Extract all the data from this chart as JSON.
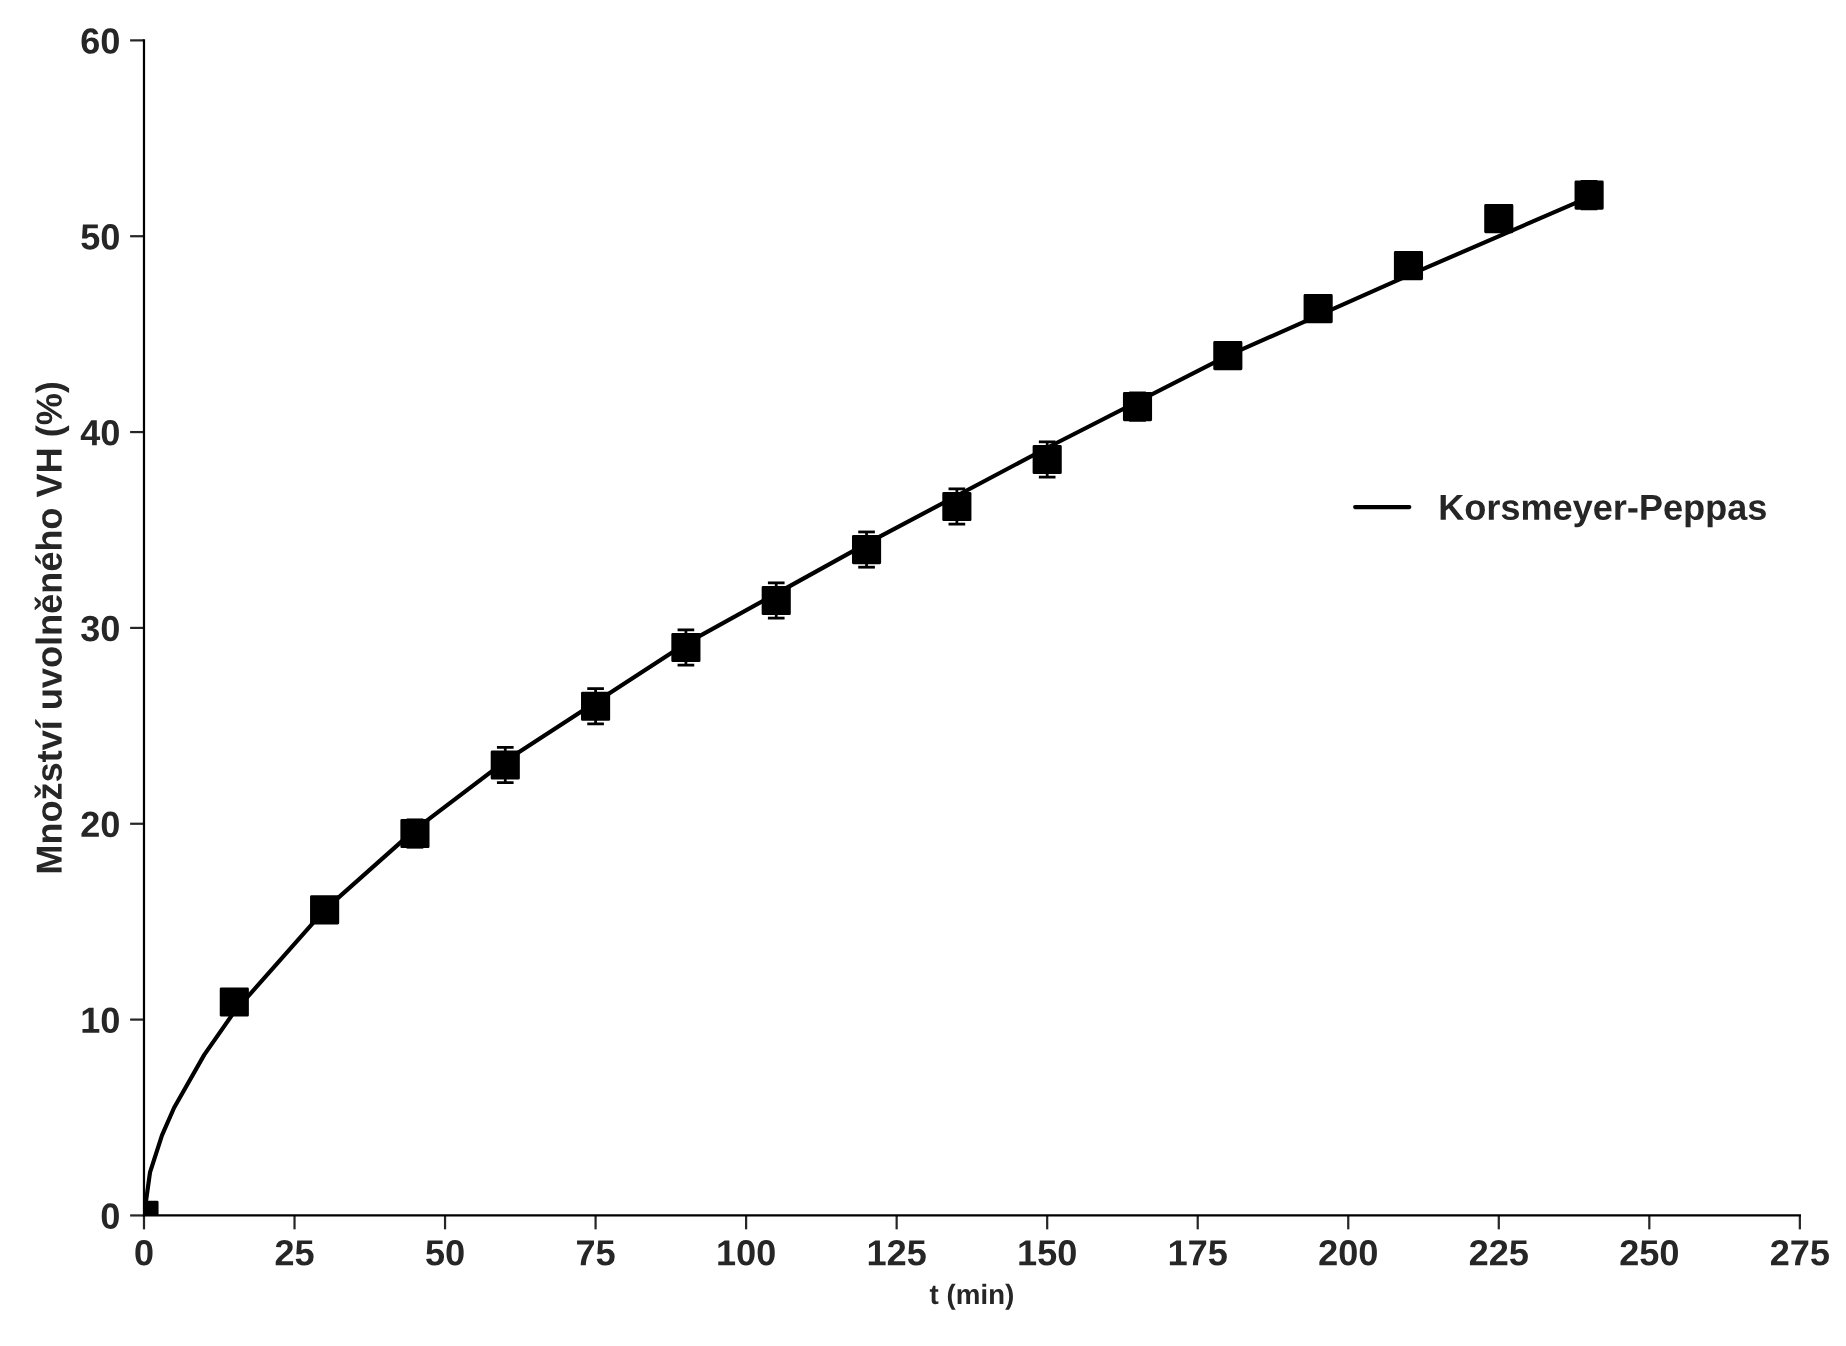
{
  "chart_data": {
    "type": "scatter",
    "xlabel": "t (min)",
    "ylabel": "Množství uvolněného VH (%)",
    "xlim": [
      0,
      275
    ],
    "xticks": [
      0,
      25,
      50,
      75,
      100,
      125,
      150,
      175,
      200,
      225,
      250,
      275
    ],
    "ylim": [
      0,
      60
    ],
    "yticks": [
      0,
      10,
      20,
      30,
      40,
      50,
      60
    ],
    "grid": false,
    "legend": "right",
    "marker": "square",
    "series": [
      {
        "color": "#000000",
        "x": [
          0,
          15,
          30,
          45,
          60,
          75,
          90,
          105,
          120,
          135,
          150,
          165,
          180,
          195,
          210,
          225,
          240
        ],
        "values": [
          0,
          10.9,
          15.6,
          19.5,
          23.0,
          26.0,
          29.0,
          31.4,
          34.0,
          36.2,
          38.6,
          41.3,
          43.9,
          46.3,
          48.5,
          50.9,
          52.1
        ],
        "errors": [
          null,
          0.4,
          0.4,
          0.7,
          0.9,
          0.9,
          0.9,
          0.9,
          0.9,
          0.9,
          0.9,
          0.7,
          0.5,
          0.5,
          0.5,
          0.6,
          0.7
        ]
      },
      {
        "type": "line",
        "name": "Korsmeyer-Peppas",
        "color": "#000000",
        "line_style": "solid",
        "marker": "none",
        "x": [
          0,
          1,
          3,
          5,
          10,
          15,
          30,
          45,
          60,
          90,
          120,
          150,
          180,
          210,
          240
        ],
        "values": [
          0,
          2.2,
          4.1,
          5.5,
          8.2,
          10.4,
          15.6,
          19.7,
          23.2,
          29.2,
          34.3,
          39.2,
          43.9,
          48.0,
          52.0
        ]
      }
    ]
  }
}
